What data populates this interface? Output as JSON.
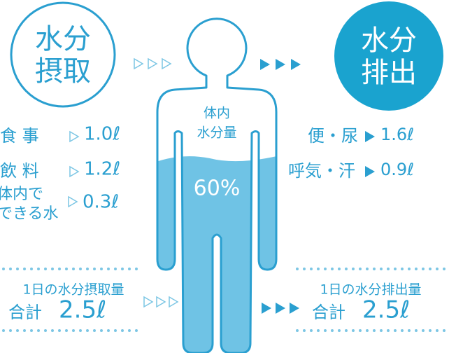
{
  "intake": {
    "title": [
      "水分",
      "摂取"
    ],
    "items": [
      {
        "label": [
          "食 事"
        ],
        "amount": "1.0ℓ"
      },
      {
        "label": [
          "飲 料"
        ],
        "amount": "1.2ℓ"
      },
      {
        "label": [
          "体内で",
          "できる水"
        ],
        "amount": "0.3ℓ"
      }
    ],
    "total_label": "1日の水分摂取量",
    "total_prefix": "合計",
    "total": "2.5ℓ"
  },
  "body": {
    "label": [
      "体内",
      "水分量"
    ],
    "percent": "60%"
  },
  "output": {
    "title": [
      "水分",
      "排出"
    ],
    "items": [
      {
        "label": [
          "便・尿"
        ],
        "amount": "1.6ℓ"
      },
      {
        "label": [
          "呼気・汗"
        ],
        "amount": "0.9ℓ"
      }
    ],
    "total_label": "1日の水分排出量",
    "total_prefix": "合計",
    "total": "2.5ℓ"
  }
}
